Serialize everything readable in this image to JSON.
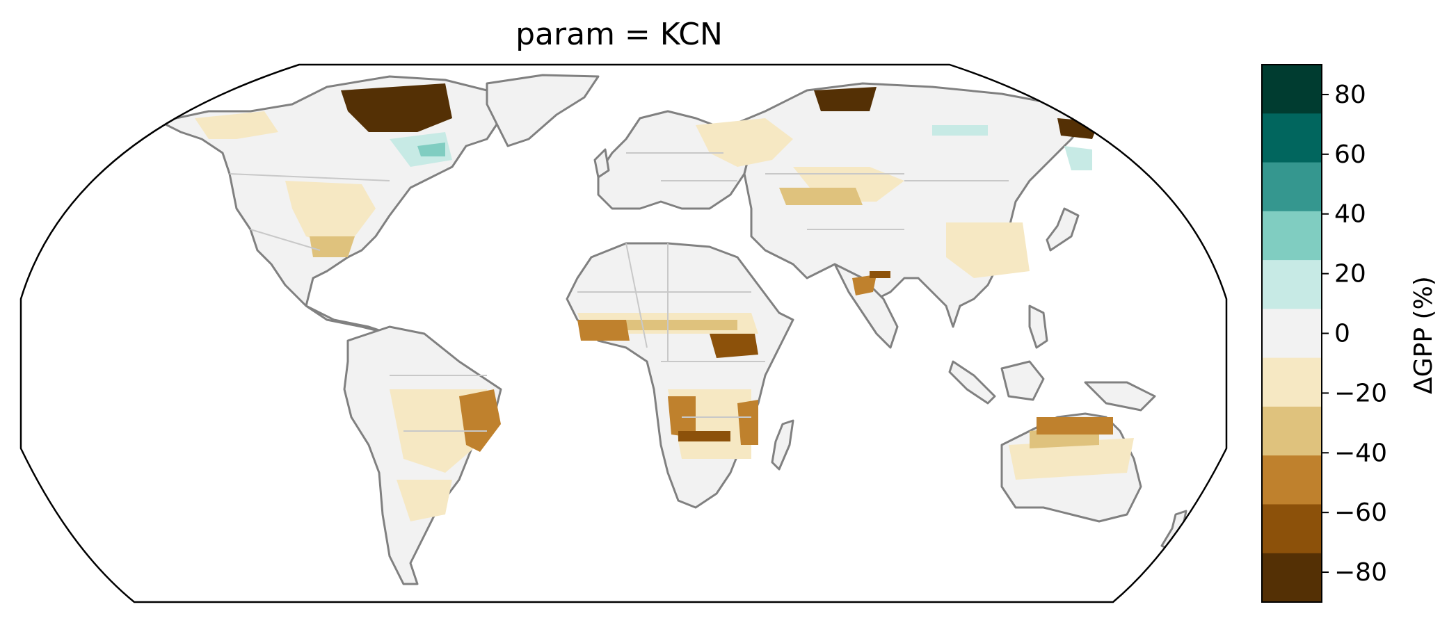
{
  "title": "param = KCN",
  "colorbar": {
    "label": "ΔGPP (%)",
    "ticks": [
      "80",
      "60",
      "40",
      "20",
      "0",
      "−20",
      "−40",
      "−60",
      "−80"
    ],
    "tick_values": [
      80,
      60,
      40,
      20,
      0,
      -20,
      -40,
      -60,
      -80
    ],
    "range": [
      -90,
      90
    ],
    "bins": [
      {
        "from": 70,
        "to": 90,
        "color": "#003c30"
      },
      {
        "from": 50,
        "to": 70,
        "color": "#01665e"
      },
      {
        "from": 30,
        "to": 50,
        "color": "#35978f"
      },
      {
        "from": 10,
        "to": 30,
        "color": "#80cdc1"
      },
      {
        "from": -10,
        "to": 10,
        "color": "#c7eae5"
      },
      {
        "from": -10,
        "to": 10,
        "color": "#f2f2f2"
      },
      {
        "from": -30,
        "to": -10,
        "color": "#f6e8c3"
      },
      {
        "from": -50,
        "to": -30,
        "color": "#dfc27d"
      },
      {
        "from": -70,
        "to": -50,
        "color": "#bf812d"
      },
      {
        "from": -90,
        "to": -70,
        "color": "#8c510a"
      },
      {
        "from": -90,
        "to": -70,
        "color": "#543005"
      }
    ]
  },
  "map": {
    "projection": "Robinson",
    "coastline_color": "#808080",
    "border_color": "#c8c8c8",
    "ocean_color": "#ffffff"
  }
}
